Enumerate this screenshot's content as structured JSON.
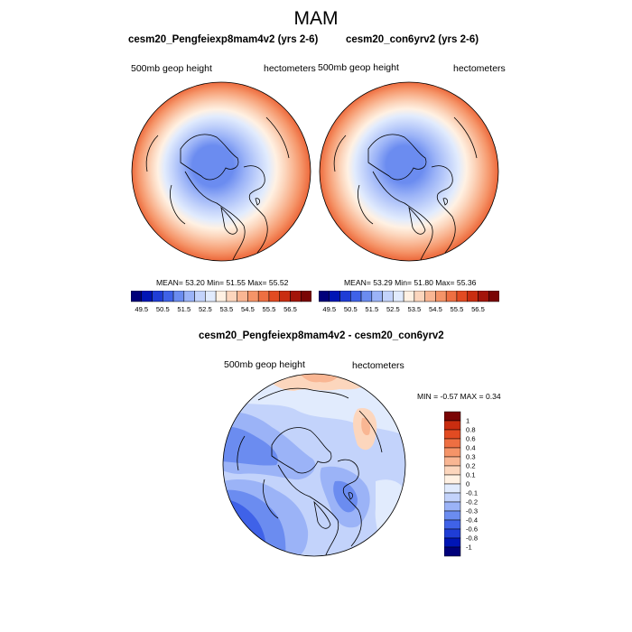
{
  "figure_title": "MAM",
  "panels": [
    {
      "title": "cesm20_Pengfeiexp8mam4v2 (yrs 2-6)",
      "left_label": "500mb geop height",
      "right_label": "hectometers",
      "stats": "MEAN=  53.20  Min=  51.55  Max=  55.52"
    },
    {
      "title": "cesm20_con6yrv2 (yrs 2-6)",
      "left_label": "500mb geop height",
      "right_label": "hectometers",
      "stats": "MEAN=  53.29  Min=  51.80  Max=  55.36"
    },
    {
      "title": "cesm20_Pengfeiexp8mam4v2 - cesm20_con6yrv2",
      "left_label": "500mb geop height",
      "right_label": "hectometers",
      "stats": "MIN =  -0.57 MAX =   0.34"
    }
  ],
  "colorbar_top": {
    "colors": [
      "#00007a",
      "#0015b5",
      "#1f3dd6",
      "#3f62e8",
      "#6b8cf0",
      "#9bb3f7",
      "#c3d3fb",
      "#e1ebfd",
      "#fff1e3",
      "#fcd6bd",
      "#f9b693",
      "#f59468",
      "#ee6f42",
      "#e24b22",
      "#c92d10",
      "#a3140a",
      "#7a0505"
    ],
    "tick_labels": [
      "49.5",
      "50.5",
      "51.5",
      "52.5",
      "53.5",
      "54.5",
      "55.5",
      "56.5"
    ]
  },
  "colorbar_diff": {
    "colors": [
      "#7a0505",
      "#c92d10",
      "#e24b22",
      "#ee6f42",
      "#f59468",
      "#f9b693",
      "#fcd6bd",
      "#fff1e3",
      "#e1ebfd",
      "#c3d3fb",
      "#9bb3f7",
      "#6b8cf0",
      "#3f62e8",
      "#1f3dd6",
      "#0015b5",
      "#00007a"
    ],
    "tick_labels": [
      "1",
      "0.8",
      "0.6",
      "0.4",
      "0.3",
      "0.2",
      "0.1",
      "0",
      "-0.1",
      "-0.2",
      "-0.3",
      "-0.4",
      "-0.6",
      "-0.8",
      "-1"
    ]
  },
  "chart_data": [
    {
      "type": "heatmap",
      "projection": "north polar stereographic",
      "title": "cesm20_Pengfeiexp8mam4v2 (yrs 2-6)",
      "variable": "500mb geop height",
      "units": "hectometers",
      "mean": 53.2,
      "min": 51.55,
      "max": 55.52,
      "contour_levels": [
        50,
        50.5,
        51,
        51.5,
        52,
        52.5,
        53,
        53.5,
        54,
        54.5,
        55,
        55.5,
        56
      ]
    },
    {
      "type": "heatmap",
      "projection": "north polar stereographic",
      "title": "cesm20_con6yrv2 (yrs 2-6)",
      "variable": "500mb geop height",
      "units": "hectometers",
      "mean": 53.29,
      "min": 51.8,
      "max": 55.36,
      "contour_levels": [
        50,
        50.5,
        51,
        51.5,
        52,
        52.5,
        53,
        53.5,
        54,
        54.5,
        55,
        55.5,
        56
      ]
    },
    {
      "type": "heatmap",
      "projection": "north polar stereographic",
      "title": "cesm20_Pengfeiexp8mam4v2 - cesm20_con6yrv2",
      "variable": "500mb geop height",
      "units": "hectometers",
      "min": -0.57,
      "max": 0.34,
      "contour_levels": [
        -1,
        -0.8,
        -0.6,
        -0.4,
        -0.3,
        -0.2,
        -0.1,
        0,
        0.1,
        0.2,
        0.3,
        0.4,
        0.6,
        0.8,
        1
      ]
    }
  ]
}
